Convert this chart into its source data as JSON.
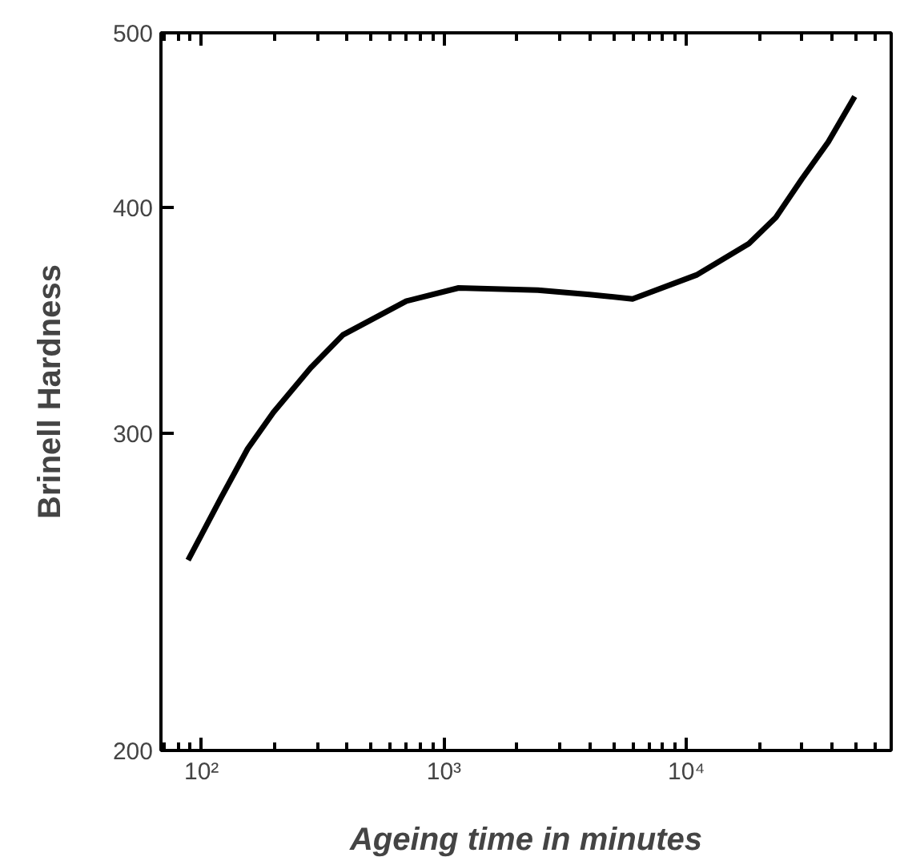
{
  "chart_data": {
    "type": "line",
    "xlabel": "Ageing time in minutes",
    "ylabel": "Brinell Hardness",
    "log": "xy",
    "grid": false,
    "marker": "none",
    "line_style": "solid",
    "xlim": [
      68,
      70000
    ],
    "ylim": [
      200,
      500
    ],
    "xticks": [
      {
        "value": 100,
        "label": "10²"
      },
      {
        "value": 1000,
        "label": "10³"
      },
      {
        "value": 10000,
        "label": "10⁴"
      }
    ],
    "yticks": [
      200,
      300,
      400,
      500
    ],
    "series": [
      {
        "color": "#000000",
        "x": [
          88,
          120,
          155,
          198,
          282,
          383,
          700,
          1150,
          2440,
          3990,
          6000,
          11000,
          18100,
          23400,
          30000,
          38500,
          49500
        ],
        "values": [
          255,
          276,
          294,
          308,
          326,
          340,
          355,
          361,
          360,
          358,
          356,
          367,
          382,
          395,
          415,
          435,
          461
        ]
      }
    ]
  }
}
